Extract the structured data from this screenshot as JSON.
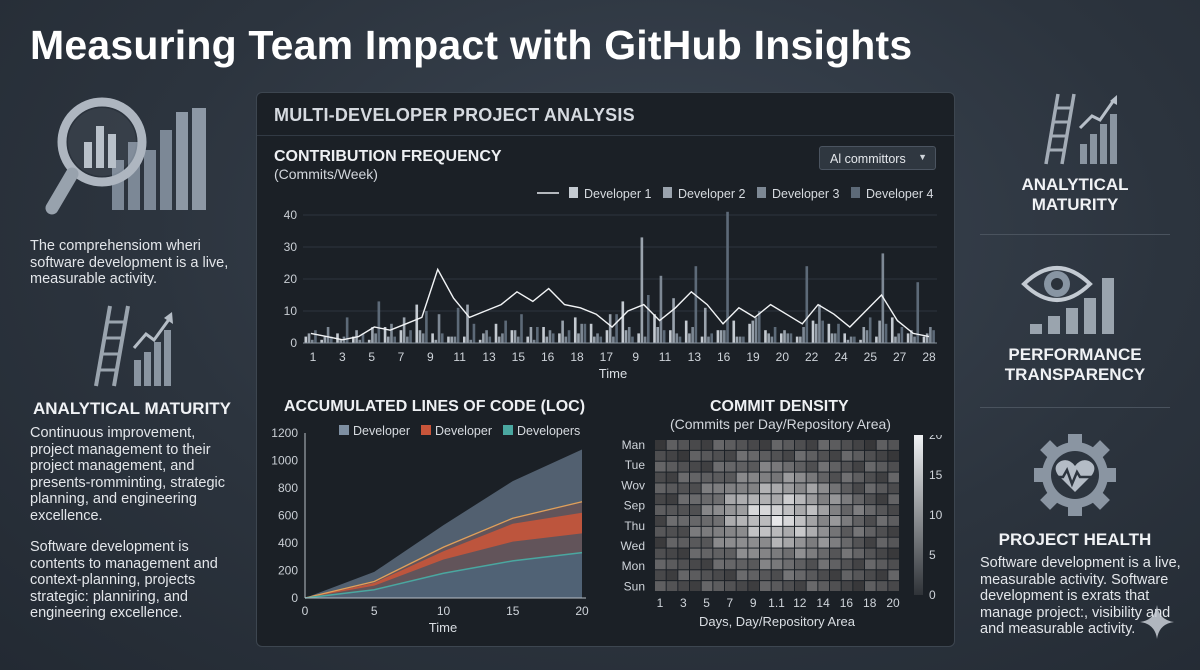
{
  "title": "Measuring Team Impact with GitHub Insights",
  "left": {
    "intro": "The comprehensiom wheri software development is a live, measurable activity.",
    "heading": "ANALYTICAL MATURITY",
    "para1": "Continuous improvement, project management to their project management, and presents-romminting, strategic planning, and engineering excellence.",
    "para2": "Software development is contents to management and context-planning, projects strategic: planniring, and engineering excellence."
  },
  "panel": {
    "title": "MULTI-DEVELOPER PROJECT ANALYSIS",
    "dropdown": "Al committors",
    "dropdown_caret": "▼"
  },
  "right": {
    "item1": "ANALYTICAL MATURITY",
    "item2": "PERFORMANCE TRANSPARENCY",
    "item3": "PROJECT HEALTH",
    "para": "Software development is a live, measurable activity. Software development is exrats that manage project:, visibility and and measurable activity."
  },
  "colors": {
    "background": "#2c343e",
    "panel": "#1b2026",
    "dev1": "#c4cad1",
    "dev2": "#9aa3ad",
    "dev3": "#7d8894",
    "dev4": "#5d6a78",
    "loc_gray": "#7e8fa2",
    "loc_orange": "#c8553a",
    "loc_teal": "#4aa7a0"
  },
  "chart_data": [
    {
      "type": "bar",
      "title": "CONTRIBUTION FREQUENCY",
      "subtitle": "(Commits/Week)",
      "xlabel": "Time",
      "ylabel": "",
      "ylim": [
        0,
        45
      ],
      "yticks": [
        0,
        10,
        20,
        30,
        40
      ],
      "xtick_labels": [
        "1",
        "3",
        "5",
        "7",
        "9",
        "11",
        "13",
        "15",
        "16",
        "18",
        "17",
        "9",
        "11",
        "13",
        "16",
        "19",
        "20",
        "22",
        "24",
        "25",
        "27",
        "28"
      ],
      "legend": [
        "Developer 1",
        "Developer 2",
        "Developer 3",
        "Developer 4"
      ],
      "legend_position": "top",
      "grid": true,
      "series": [
        {
          "name": "Developer 1",
          "values": [
            2,
            1,
            3,
            2,
            1,
            5,
            4,
            12,
            3,
            2,
            2,
            1,
            6,
            4,
            2,
            5,
            3,
            8,
            6,
            4,
            13,
            3,
            9,
            4,
            7,
            2,
            4,
            7,
            6,
            4,
            3,
            2,
            7,
            6,
            3,
            1,
            2,
            8,
            3,
            2
          ]
        },
        {
          "name": "Developer 2",
          "values": [
            3,
            2,
            1,
            4,
            5,
            2,
            8,
            4,
            1,
            2,
            12,
            3,
            2,
            4,
            5,
            2,
            7,
            3,
            2,
            9,
            4,
            33,
            5,
            14,
            3,
            11,
            4,
            2,
            7,
            3,
            4,
            2,
            6,
            3,
            1,
            5,
            7,
            2,
            4,
            3
          ]
        },
        {
          "name": "Developer 3",
          "values": [
            1,
            5,
            2,
            1,
            3,
            6,
            2,
            3,
            9,
            2,
            1,
            4,
            3,
            2,
            1,
            4,
            2,
            6,
            3,
            2,
            5,
            2,
            21,
            3,
            5,
            2,
            4,
            2,
            8,
            2,
            3,
            5,
            12,
            3,
            2,
            4,
            28,
            3,
            2,
            5
          ]
        },
        {
          "name": "Developer 4",
          "values": [
            4,
            2,
            8,
            3,
            13,
            2,
            4,
            10,
            3,
            11,
            6,
            2,
            7,
            9,
            5,
            3,
            4,
            6,
            2,
            9,
            2,
            15,
            4,
            2,
            24,
            3,
            41,
            2,
            10,
            5,
            3,
            24,
            7,
            6,
            2,
            8,
            6,
            5,
            19,
            4
          ]
        },
        {
          "name": "Trend",
          "values": [
            3,
            2,
            1,
            2,
            5,
            4,
            6,
            8,
            23,
            14,
            8,
            10,
            12,
            16,
            13,
            17,
            12,
            11,
            9,
            5,
            10,
            12,
            7,
            11,
            16,
            12,
            6,
            11,
            8,
            12,
            9,
            6,
            12,
            9,
            5,
            10,
            15,
            7,
            3,
            2
          ]
        }
      ]
    },
    {
      "type": "area",
      "title": "ACCUMULATED LINES OF CODE (LOC)",
      "xlabel": "Time",
      "ylabel": "",
      "x": [
        0,
        5,
        10,
        15,
        20
      ],
      "xlim": [
        0,
        20
      ],
      "ylim": [
        0,
        1200
      ],
      "yticks": [
        0,
        200,
        400,
        600,
        800,
        1000,
        1200
      ],
      "legend": [
        "Developer",
        "Developer",
        "Developers"
      ],
      "legend_position": "top",
      "grid": false,
      "series": [
        {
          "name": "Developer",
          "values": [
            0,
            190,
            530,
            850,
            1080
          ]
        },
        {
          "name": "Developer",
          "values": [
            0,
            120,
            370,
            580,
            700
          ]
        },
        {
          "name": "Developers",
          "values": [
            0,
            60,
            180,
            270,
            330
          ]
        }
      ],
      "band_upper": [
        0,
        110,
        340,
        540,
        620
      ],
      "band_lower": [
        0,
        90,
        280,
        410,
        470
      ]
    },
    {
      "type": "heatmap",
      "title": "COMMIT DENSITY",
      "subtitle": "(Commits per Day/Repository Area)",
      "xlabel": "Days, Day/Repository Area",
      "ylabels": [
        "Man",
        "Tue",
        "Wov",
        "Sep",
        "Thu",
        "Wed",
        "Mon",
        "Sun"
      ],
      "xlabels": [
        "1",
        "3",
        "5",
        "7",
        "9",
        "1.1",
        "12",
        "14",
        "16",
        "18",
        "20"
      ],
      "colorbar_ticks": [
        0,
        5,
        10,
        15,
        20
      ],
      "vmin": 0,
      "vmax": 20
    }
  ]
}
